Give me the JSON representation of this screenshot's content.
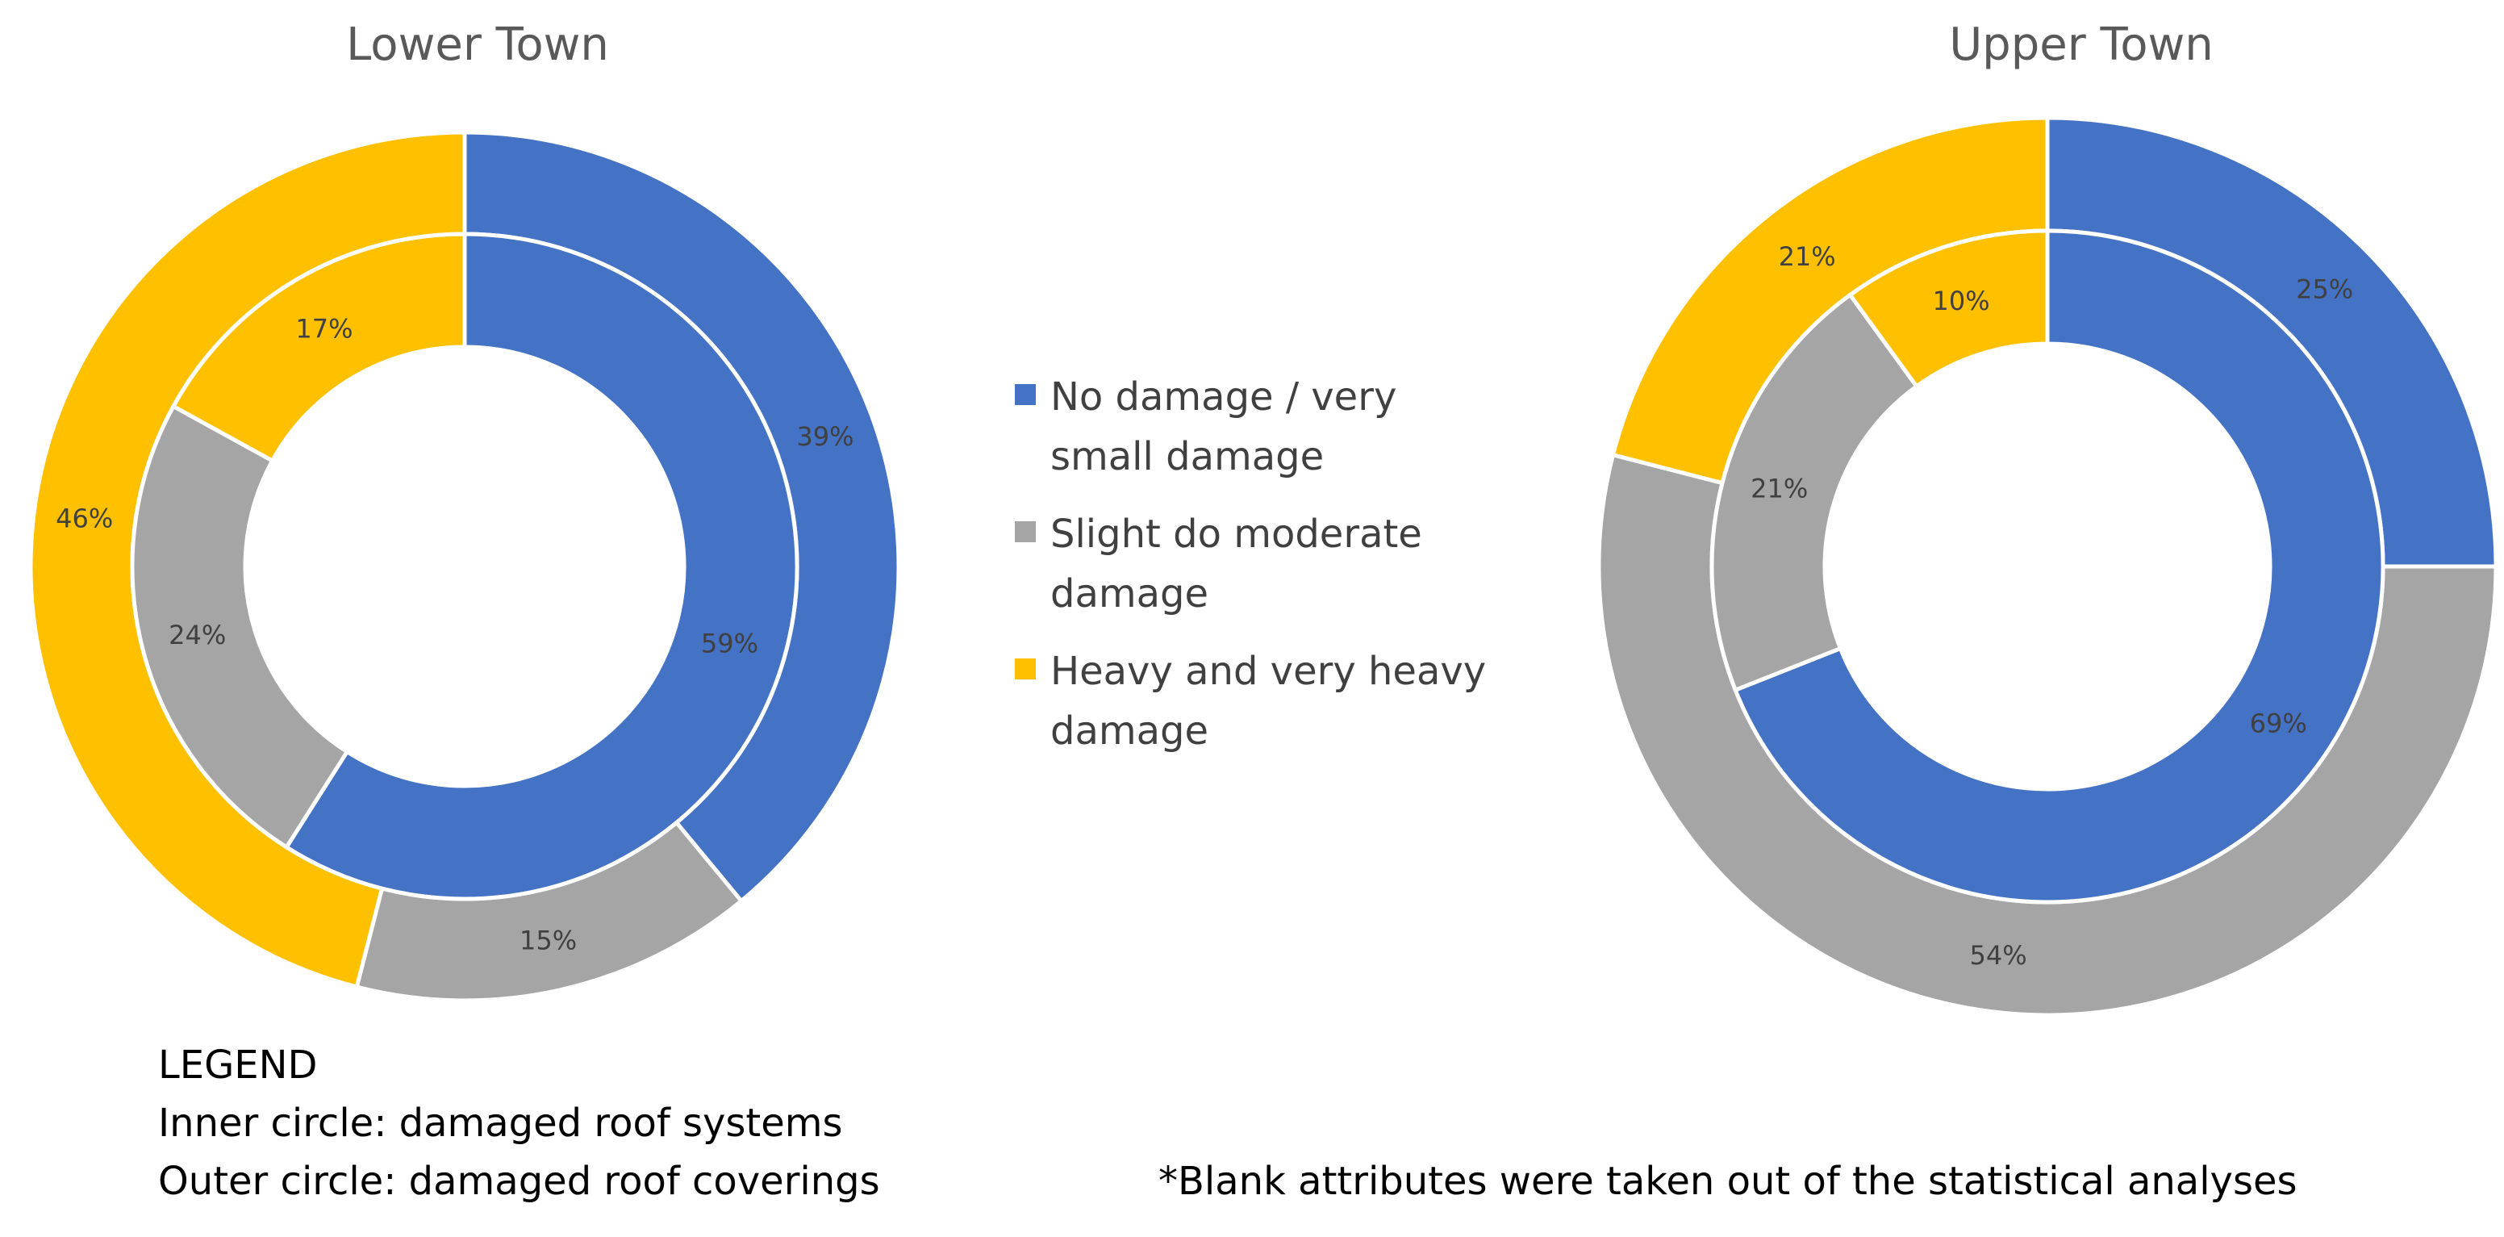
{
  "chart_data": {
    "type": "pie",
    "subtype": "nested-donut",
    "legend_position": "center",
    "legend": [
      {
        "label_lines": [
          "No damage  / very",
          "small damage"
        ],
        "color": "#4472C4"
      },
      {
        "label_lines": [
          "Slight do moderate",
          "damage"
        ],
        "color": "#A5A5A5"
      },
      {
        "label_lines": [
          "Heavy and very heavy",
          "damage"
        ],
        "color": "#FFC000"
      }
    ],
    "charts": [
      {
        "title": "Lower Town",
        "categories": [
          "No damage / very small damage",
          "Slight do moderate damage",
          "Heavy and very heavy damage"
        ],
        "inner": {
          "name": "Inner circle: damaged roof systems",
          "values": [
            59,
            24,
            17
          ],
          "labels": [
            "59%",
            "24%",
            "17%"
          ]
        },
        "outer": {
          "name": "Outer circle: damaged roof coverings",
          "values": [
            39,
            15,
            46
          ],
          "labels": [
            "39%",
            "15%",
            "46%"
          ]
        }
      },
      {
        "title": "Upper Town",
        "categories": [
          "No damage / very small damage",
          "Slight do moderate damage",
          "Heavy and very heavy damage"
        ],
        "inner": {
          "name": "Inner circle: damaged roof systems",
          "values": [
            69,
            21,
            10
          ],
          "labels": [
            "69%",
            "21%",
            "10%"
          ]
        },
        "outer": {
          "name": "Outer circle: damaged roof coverings",
          "values": [
            25,
            54,
            21
          ],
          "labels": [
            "25%",
            "54%",
            "21%"
          ]
        }
      }
    ]
  },
  "notes": {
    "legend_heading": "LEGEND",
    "inner_desc": "Inner circle: damaged roof systems",
    "outer_desc": "Outer circle: damaged roof coverings",
    "footnote": "*Blank attributes were taken out of the statistical analyses"
  }
}
